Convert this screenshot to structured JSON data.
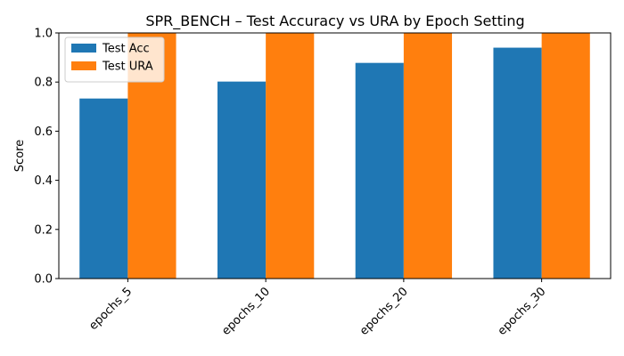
{
  "chart_data": {
    "type": "bar",
    "title": "SPR_BENCH – Test Accuracy vs URA by Epoch Setting",
    "xlabel": "",
    "ylabel": "Score",
    "categories": [
      "epochs_5",
      "epochs_10",
      "epochs_20",
      "epochs_30"
    ],
    "series": [
      {
        "name": "Test Acc",
        "color": "#1f77b4",
        "values": [
          0.733,
          0.802,
          0.878,
          0.94
        ]
      },
      {
        "name": "Test URA",
        "color": "#ff7f0e",
        "values": [
          1.0,
          1.0,
          1.0,
          1.0
        ]
      }
    ],
    "ylim": [
      0,
      1.0
    ],
    "yticks": [
      0.0,
      0.2,
      0.4,
      0.6,
      0.8,
      1.0
    ],
    "ytick_labels": [
      "0.0",
      "0.2",
      "0.4",
      "0.6",
      "0.8",
      "1.0"
    ],
    "grid": false,
    "legend_position": "top-left"
  }
}
